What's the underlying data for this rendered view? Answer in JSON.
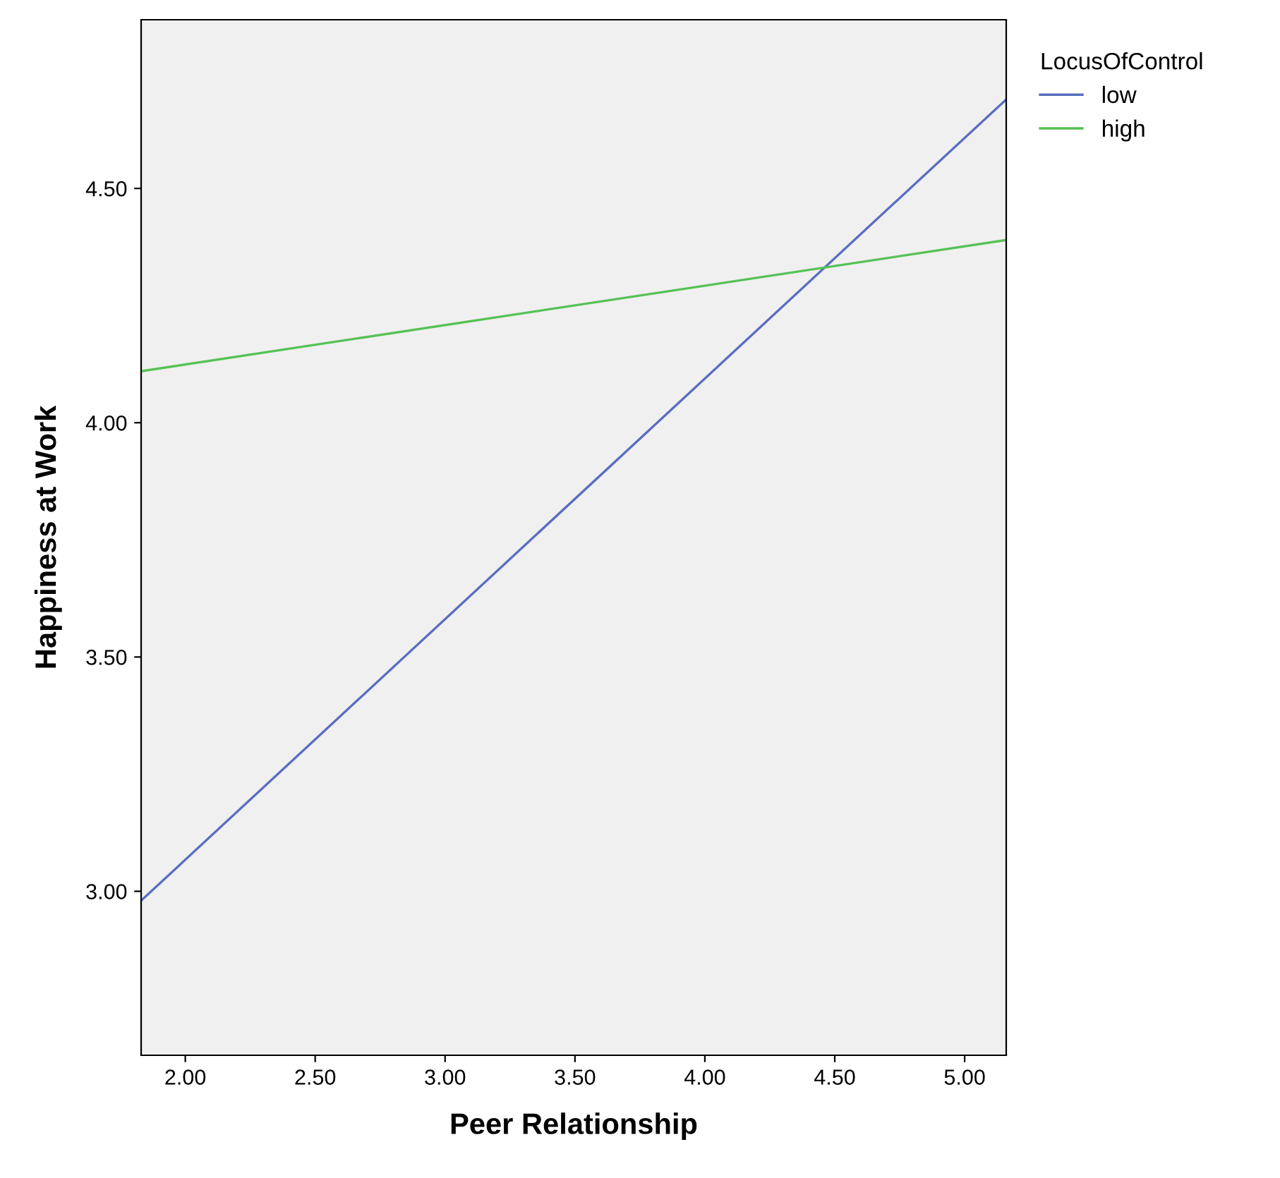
{
  "chart_data": {
    "type": "line",
    "xlabel": "Peer Relationship",
    "ylabel": "Happiness at Work",
    "legend_title": "LocusOfControl",
    "xlim": [
      1.83,
      5.16
    ],
    "ylim": [
      2.65,
      4.86
    ],
    "xticks": [
      {
        "value": 2,
        "label": "2.00"
      },
      {
        "value": 2.5,
        "label": "2.50"
      },
      {
        "value": 3,
        "label": "3.00"
      },
      {
        "value": 3.5,
        "label": "3.50"
      },
      {
        "value": 4,
        "label": "4.00"
      },
      {
        "value": 4.5,
        "label": "4.50"
      },
      {
        "value": 5,
        "label": "5.00"
      }
    ],
    "yticks": [
      {
        "value": 3,
        "label": "3.00"
      },
      {
        "value": 3.5,
        "label": "3.50"
      },
      {
        "value": 4,
        "label": "4.00"
      },
      {
        "value": 4.5,
        "label": "4.50"
      }
    ],
    "x": [
      1.83,
      5.16
    ],
    "series": [
      {
        "name": "low",
        "color": "#5a6ec0",
        "values": [
          2.98,
          4.69
        ]
      },
      {
        "name": "high",
        "color": "#55c255",
        "values": [
          4.11,
          4.39
        ]
      }
    ],
    "grid": false,
    "legend": "top right",
    "marker": "none",
    "line_style": "solid"
  }
}
